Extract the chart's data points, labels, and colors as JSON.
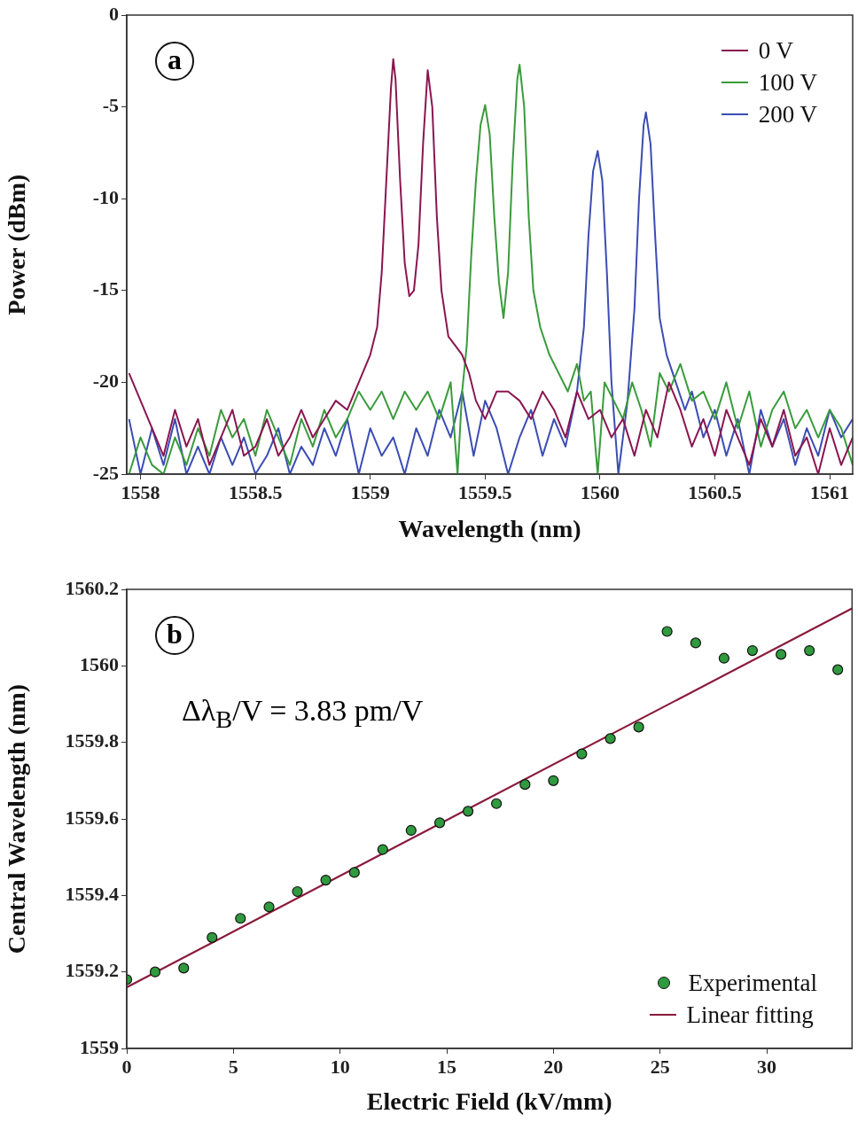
{
  "chart_data": [
    {
      "type": "line",
      "xlabel": "Wavelength (nm)",
      "ylabel": "Power (dBm)",
      "xlim": [
        1557.94,
        1561.1
      ],
      "ylim": [
        -25,
        0
      ],
      "xticks": [
        1558,
        1558.5,
        1559,
        1559.5,
        1560,
        1560.5,
        1561
      ],
      "yticks": [
        0,
        -5,
        -10,
        -15,
        -20,
        -25
      ],
      "legend": "top right",
      "annotations": [
        "a"
      ],
      "series": [
        {
          "name": "0 V",
          "color": "#8a1650",
          "x": [
            1557.95,
            1558.0,
            1558.05,
            1558.1,
            1558.15,
            1558.2,
            1558.25,
            1558.3,
            1558.35,
            1558.4,
            1558.45,
            1558.5,
            1558.55,
            1558.6,
            1558.65,
            1558.7,
            1558.75,
            1558.8,
            1558.85,
            1558.9,
            1558.95,
            1559.0,
            1559.03,
            1559.05,
            1559.07,
            1559.09,
            1559.1,
            1559.11,
            1559.13,
            1559.15,
            1559.17,
            1559.19,
            1559.21,
            1559.23,
            1559.25,
            1559.27,
            1559.29,
            1559.31,
            1559.34,
            1559.37,
            1559.4,
            1559.43,
            1559.46,
            1559.5,
            1559.55,
            1559.6,
            1559.65,
            1559.7,
            1559.75,
            1559.8,
            1559.85,
            1559.9,
            1559.95,
            1560.0,
            1560.05,
            1560.1,
            1560.15,
            1560.2,
            1560.25,
            1560.3,
            1560.35,
            1560.4,
            1560.45,
            1560.5,
            1560.55,
            1560.6,
            1560.65,
            1560.7,
            1560.75,
            1560.8,
            1560.85,
            1560.9,
            1560.95,
            1561.0,
            1561.05,
            1561.1
          ],
          "values": [
            -19.5,
            -21,
            -22.5,
            -24,
            -21.5,
            -23.5,
            -22,
            -24.5,
            -23,
            -21.5,
            -24,
            -23.5,
            -22,
            -24,
            -23,
            -21.5,
            -23,
            -22,
            -21,
            -21.5,
            -20,
            -18.5,
            -17,
            -14,
            -9,
            -4,
            -2.4,
            -3.5,
            -9,
            -13.5,
            -15.3,
            -15,
            -12.5,
            -7,
            -3,
            -5,
            -11,
            -15,
            -17.5,
            -18,
            -18.5,
            -19.5,
            -21,
            -22,
            -20.5,
            -20.5,
            -21,
            -22,
            -20.5,
            -21.5,
            -23,
            -20.5,
            -22,
            -21.5,
            -23,
            -22,
            -24,
            -21.5,
            -23,
            -20,
            -21.5,
            -23.5,
            -22,
            -24,
            -21.5,
            -23,
            -24.5,
            -22,
            -23.5,
            -21.5,
            -24,
            -23,
            -25,
            -22.5,
            -24.5,
            -23
          ]
        },
        {
          "name": "100 V",
          "color": "#3a9b3c",
          "x": [
            1557.95,
            1558.0,
            1558.05,
            1558.1,
            1558.15,
            1558.2,
            1558.25,
            1558.3,
            1558.35,
            1558.4,
            1558.45,
            1558.5,
            1558.55,
            1558.6,
            1558.65,
            1558.7,
            1558.75,
            1558.8,
            1558.85,
            1558.9,
            1558.95,
            1559.0,
            1559.05,
            1559.1,
            1559.15,
            1559.2,
            1559.25,
            1559.3,
            1559.35,
            1559.38,
            1559.4,
            1559.42,
            1559.44,
            1559.46,
            1559.48,
            1559.5,
            1559.52,
            1559.54,
            1559.56,
            1559.58,
            1559.6,
            1559.62,
            1559.64,
            1559.65,
            1559.67,
            1559.69,
            1559.71,
            1559.74,
            1559.78,
            1559.82,
            1559.86,
            1559.9,
            1559.93,
            1559.96,
            1559.99,
            1560.02,
            1560.06,
            1560.1,
            1560.14,
            1560.18,
            1560.22,
            1560.26,
            1560.3,
            1560.35,
            1560.4,
            1560.45,
            1560.5,
            1560.55,
            1560.6,
            1560.65,
            1560.7,
            1560.75,
            1560.8,
            1560.85,
            1560.9,
            1560.95,
            1561.0,
            1561.05,
            1561.1
          ],
          "values": [
            -25,
            -23,
            -24.5,
            -25,
            -23,
            -24.5,
            -22.5,
            -24,
            -21.5,
            -23,
            -22,
            -24,
            -21.5,
            -23,
            -24.5,
            -22,
            -23.5,
            -21.5,
            -23,
            -22,
            -20.5,
            -21.5,
            -20.5,
            -22,
            -20.5,
            -21.5,
            -20.5,
            -22,
            -20,
            -25,
            -20.5,
            -18,
            -13,
            -9,
            -6,
            -4.9,
            -6.5,
            -11,
            -14.5,
            -16.5,
            -14,
            -8,
            -3.5,
            -2.7,
            -5,
            -11,
            -15,
            -17,
            -18.5,
            -19.5,
            -20.5,
            -19,
            -21,
            -20.5,
            -25,
            -20,
            -21,
            -22,
            -20,
            -21.5,
            -23.5,
            -19.5,
            -20.5,
            -19,
            -21,
            -20.5,
            -22,
            -20,
            -22.5,
            -20.5,
            -23.5,
            -21.5,
            -20.5,
            -22.5,
            -21.5,
            -23,
            -21.5,
            -22.5,
            -24.5
          ]
        },
        {
          "name": "200 V",
          "color": "#3b4db3",
          "x": [
            1557.95,
            1558.0,
            1558.05,
            1558.1,
            1558.15,
            1558.2,
            1558.25,
            1558.3,
            1558.35,
            1558.4,
            1558.45,
            1558.5,
            1558.55,
            1558.6,
            1558.65,
            1558.7,
            1558.75,
            1558.8,
            1558.85,
            1558.9,
            1558.95,
            1559.0,
            1559.05,
            1559.1,
            1559.15,
            1559.2,
            1559.25,
            1559.3,
            1559.35,
            1559.4,
            1559.45,
            1559.5,
            1559.55,
            1559.6,
            1559.65,
            1559.7,
            1559.75,
            1559.8,
            1559.85,
            1559.9,
            1559.93,
            1559.95,
            1559.97,
            1559.99,
            1560.01,
            1560.03,
            1560.05,
            1560.08,
            1560.12,
            1560.15,
            1560.17,
            1560.19,
            1560.2,
            1560.22,
            1560.24,
            1560.26,
            1560.29,
            1560.33,
            1560.37,
            1560.4,
            1560.45,
            1560.5,
            1560.55,
            1560.6,
            1560.65,
            1560.7,
            1560.75,
            1560.8,
            1560.85,
            1560.9,
            1560.95,
            1561.0,
            1561.05,
            1561.1
          ],
          "values": [
            -22,
            -25,
            -22.5,
            -24.5,
            -22,
            -25,
            -23.5,
            -25,
            -23,
            -24.5,
            -23,
            -25,
            -24,
            -22.5,
            -25,
            -23.5,
            -24.5,
            -22.5,
            -24,
            -22,
            -25,
            -22.5,
            -24,
            -23,
            -25,
            -22.5,
            -24,
            -21.5,
            -23,
            -20.5,
            -24,
            -21,
            -22.5,
            -25,
            -23,
            -21.5,
            -24,
            -22,
            -23.5,
            -20.5,
            -17,
            -12,
            -8.5,
            -7.4,
            -9,
            -14,
            -20,
            -25,
            -21,
            -16,
            -10,
            -6,
            -5.3,
            -7,
            -12,
            -16.5,
            -18.5,
            -20,
            -21.5,
            -20.5,
            -23,
            -21.5,
            -24,
            -22,
            -25,
            -21.5,
            -23.5,
            -22,
            -24.5,
            -22.5,
            -24,
            -21.5,
            -23,
            -22
          ]
        }
      ]
    },
    {
      "type": "scatter",
      "xlabel": "Electric Field (kV/mm)",
      "ylabel": "Central Wavelength (nm)",
      "xlim": [
        0,
        34
      ],
      "ylim": [
        1559,
        1560.2
      ],
      "xticks": [
        0,
        5,
        10,
        15,
        20,
        25,
        30
      ],
      "yticks": [
        1559,
        1559.2,
        1559.4,
        1559.6,
        1559.8,
        1560,
        1560.2
      ],
      "legend": "bottom right",
      "annotations": [
        "b",
        "Δλ$_{B}$/V = 3.83 pm/V"
      ],
      "series": [
        {
          "name": "Experimental",
          "type": "scatter",
          "marker": "circle",
          "color": "#2f9a3e",
          "x": [
            0,
            1.33,
            2.67,
            4,
            5.33,
            6.67,
            8,
            9.33,
            10.67,
            12,
            13.33,
            14.67,
            16,
            17.33,
            18.67,
            20,
            21.33,
            22.67,
            24,
            25.33,
            26.67,
            28,
            29.33,
            30.67,
            32,
            33.33
          ],
          "values": [
            1559.18,
            1559.2,
            1559.21,
            1559.29,
            1559.34,
            1559.37,
            1559.41,
            1559.44,
            1559.46,
            1559.52,
            1559.57,
            1559.59,
            1559.62,
            1559.64,
            1559.69,
            1559.7,
            1559.77,
            1559.81,
            1559.84,
            1560.09,
            1560.06,
            1560.02,
            1560.04,
            1560.03,
            1560.04,
            1559.99
          ]
        },
        {
          "name": "Linear fitting",
          "type": "line",
          "marker": "none",
          "color": "#8a1a3c",
          "x": [
            0,
            34
          ],
          "values": [
            1559.16,
            1560.15
          ]
        }
      ]
    }
  ]
}
